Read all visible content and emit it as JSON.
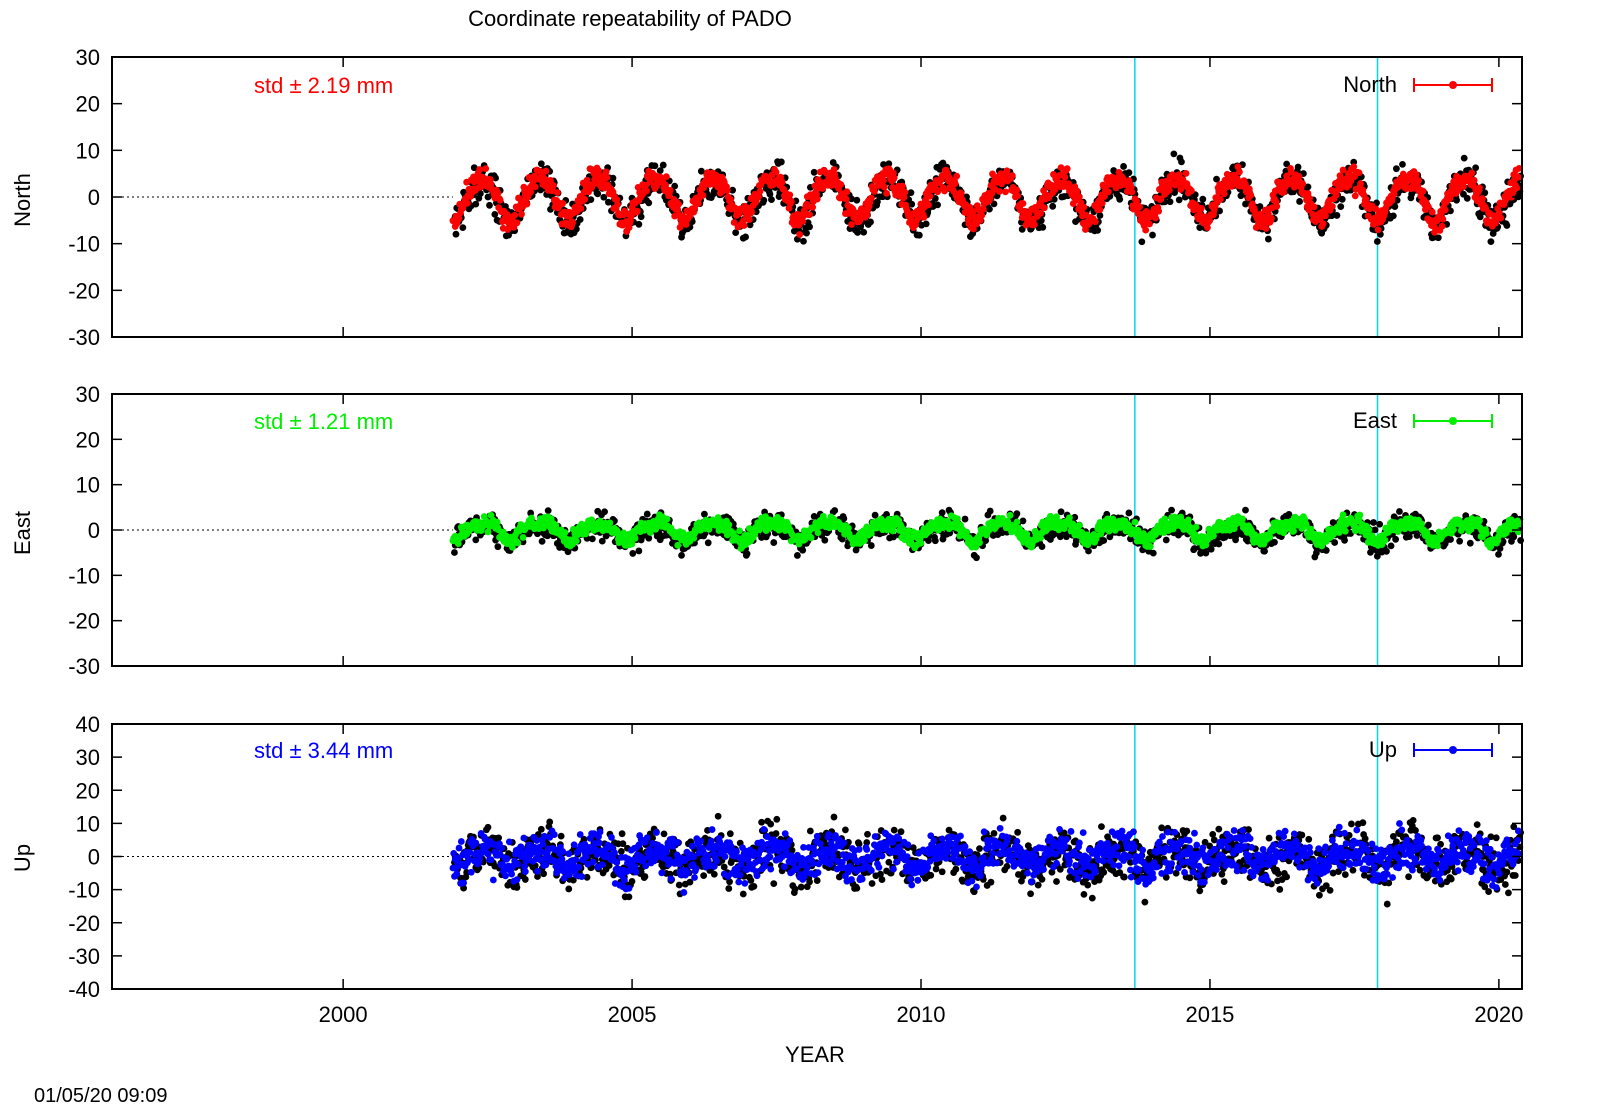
{
  "chart_data": {
    "type": "scatter",
    "title": "Coordinate repeatability of PADO",
    "xlabel": "YEAR",
    "timestamp": "01/05/20 09:09",
    "xlim": [
      1996,
      2020.4
    ],
    "xticks": [
      2000,
      2005,
      2010,
      2015,
      2020
    ],
    "event_lines": [
      2013.7,
      2017.9
    ],
    "event_line_color": "#00d8e8",
    "raw_color": "#000000",
    "data_start": 2001.9,
    "data_end": 2020.35,
    "panels": [
      {
        "name": "North",
        "ylabel": "North",
        "legend": "North",
        "color": "#ff0000",
        "std_label": "std ± 2.19 mm",
        "ylim": [
          -30,
          30
        ],
        "yticks": [
          -30,
          -20,
          -10,
          0,
          10,
          20,
          30
        ],
        "amplitude": 4.5,
        "noise": 1.2,
        "black_noise": 2.0,
        "seed": 11
      },
      {
        "name": "East",
        "ylabel": "East",
        "legend": "East",
        "color": "#00ee00",
        "std_label": "std ± 1.21 mm",
        "ylim": [
          -30,
          30
        ],
        "yticks": [
          -30,
          -20,
          -10,
          0,
          10,
          20,
          30
        ],
        "amplitude": 1.8,
        "noise": 0.8,
        "black_noise": 1.4,
        "seed": 23
      },
      {
        "name": "Up",
        "ylabel": "Up",
        "legend": "Up",
        "color": "#0000ff",
        "std_label": "std ± 3.44 mm",
        "ylim": [
          -40,
          40
        ],
        "yticks": [
          -40,
          -30,
          -20,
          -10,
          0,
          10,
          20,
          30,
          40
        ],
        "amplitude": 2.5,
        "noise": 3.0,
        "black_noise": 4.0,
        "seed": 37
      }
    ]
  }
}
